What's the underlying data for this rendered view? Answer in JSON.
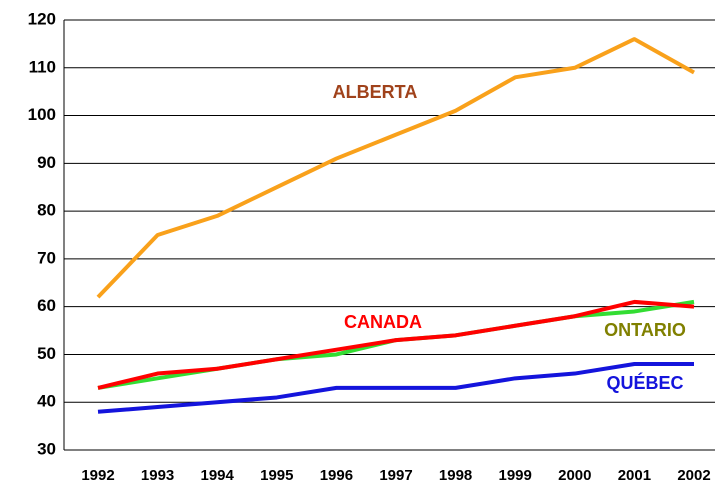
{
  "chart_data": {
    "type": "line",
    "categories": [
      "1992",
      "1993",
      "1994",
      "1995",
      "1996",
      "1997",
      "1998",
      "1999",
      "2000",
      "2001",
      "2002"
    ],
    "series": [
      {
        "name": "ALBERTA",
        "color": "#f9a11b",
        "label_color": "#a0421b",
        "values": [
          62,
          75,
          79,
          85,
          91,
          96,
          101,
          108,
          110,
          116,
          109
        ]
      },
      {
        "name": "ONTARIO",
        "color": "#33dd33",
        "label_color": "#808000",
        "values": [
          43,
          45,
          47,
          49,
          50,
          53,
          54,
          56,
          58,
          59,
          61
        ]
      },
      {
        "name": "CANADA",
        "color": "#ff0000",
        "label_color": "#ff0000",
        "values": [
          43,
          46,
          47,
          49,
          51,
          53,
          54,
          56,
          58,
          61,
          60
        ]
      },
      {
        "name": "QUÉBEC",
        "color": "#1414dc",
        "label_color": "#1414dc",
        "values": [
          38,
          39,
          40,
          41,
          43,
          43,
          43,
          45,
          46,
          48,
          48
        ]
      }
    ],
    "ylim": [
      30,
      120
    ],
    "yticks": [
      30,
      40,
      50,
      60,
      70,
      80,
      90,
      100,
      110,
      120
    ],
    "grid": true
  }
}
